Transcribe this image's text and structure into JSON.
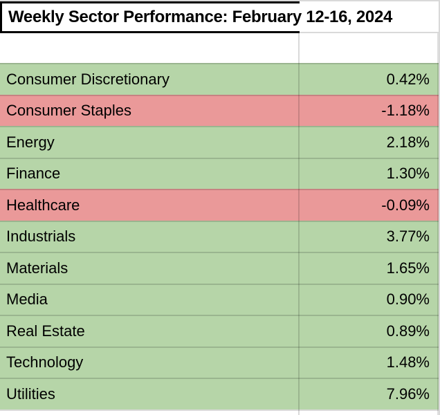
{
  "title": "Weekly Sector Performance: February 12-16, 2024",
  "table": {
    "rows": [
      {
        "sector": "Consumer Discretionary",
        "value": "0.42%",
        "status": "positive"
      },
      {
        "sector": "Consumer Staples",
        "value": "-1.18%",
        "status": "negative"
      },
      {
        "sector": "Energy",
        "value": "2.18%",
        "status": "positive"
      },
      {
        "sector": "Finance",
        "value": "1.30%",
        "status": "positive"
      },
      {
        "sector": "Healthcare",
        "value": "-0.09%",
        "status": "negative"
      },
      {
        "sector": "Industrials",
        "value": "3.77%",
        "status": "positive"
      },
      {
        "sector": "Materials",
        "value": "1.65%",
        "status": "positive"
      },
      {
        "sector": "Media",
        "value": "0.90%",
        "status": "positive"
      },
      {
        "sector": "Real Estate",
        "value": "0.89%",
        "status": "positive"
      },
      {
        "sector": "Technology",
        "value": "1.48%",
        "status": "positive"
      },
      {
        "sector": "Utilities",
        "value": "7.96%",
        "status": "positive"
      }
    ]
  },
  "colors": {
    "positive_fill": "#b6d5a8",
    "negative_fill": "#ea9999",
    "title_border": "#000000",
    "gridline": "#d9d9d9"
  }
}
